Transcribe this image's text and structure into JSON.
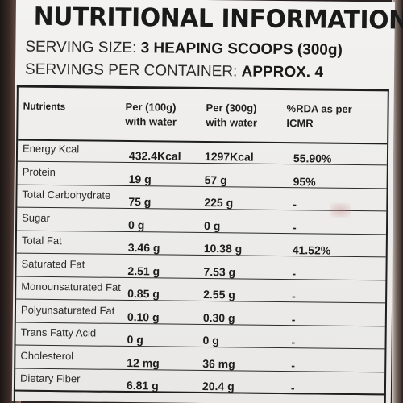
{
  "label": {
    "title": "NUTRITIONAL INFORMATION^",
    "serving_size_label": "SERVING SIZE:",
    "serving_size_value": "3 HEAPING SCOOPS (300g)",
    "servings_label": "SERVINGS PER CONTAINER:",
    "servings_value": "APPROX. 4"
  },
  "table": {
    "headers": {
      "nutrients": "Nutrients",
      "per100_l1": "Per (100g)",
      "per100_l2": "with water",
      "per300_l1": "Per (300g)",
      "per300_l2": "with water",
      "rda_l1": "%RDA as per",
      "rda_l2": "ICMR"
    },
    "rows": [
      {
        "name": "Energy Kcal",
        "per100": "432.4Kcal",
        "per300": "1297Kcal",
        "rda": "55.90%"
      },
      {
        "name": "Protein",
        "per100": "19 g",
        "per300": "57 g",
        "rda": "95%"
      },
      {
        "name": "Total Carbohydrate",
        "per100": "75 g",
        "per300": "225 g",
        "rda": "-"
      },
      {
        "name": "Sugar",
        "per100": "0 g",
        "per300": "0 g",
        "rda": "-"
      },
      {
        "name": "Total Fat",
        "per100": "3.46 g",
        "per300": "10.38 g",
        "rda": "41.52%"
      },
      {
        "name": "Saturated Fat",
        "per100": "2.51 g",
        "per300": "7.53 g",
        "rda": "-"
      },
      {
        "name": "Monounsaturated Fat",
        "per100": "0.85 g",
        "per300": "2.55 g",
        "rda": "-"
      },
      {
        "name": "Polyunsaturated Fat",
        "per100": "0.10 g",
        "per300": "0.30 g",
        "rda": "-"
      },
      {
        "name": "Trans Fatty Acid",
        "per100": "0 g",
        "per300": "0 g",
        "rda": "-"
      },
      {
        "name": "Cholesterol",
        "per100": "12 mg",
        "per300": "36 mg",
        "rda": "-"
      },
      {
        "name": "Dietary Fiber",
        "per100": "6.81 g",
        "per300": "20.4 g",
        "rda": "-"
      }
    ]
  }
}
